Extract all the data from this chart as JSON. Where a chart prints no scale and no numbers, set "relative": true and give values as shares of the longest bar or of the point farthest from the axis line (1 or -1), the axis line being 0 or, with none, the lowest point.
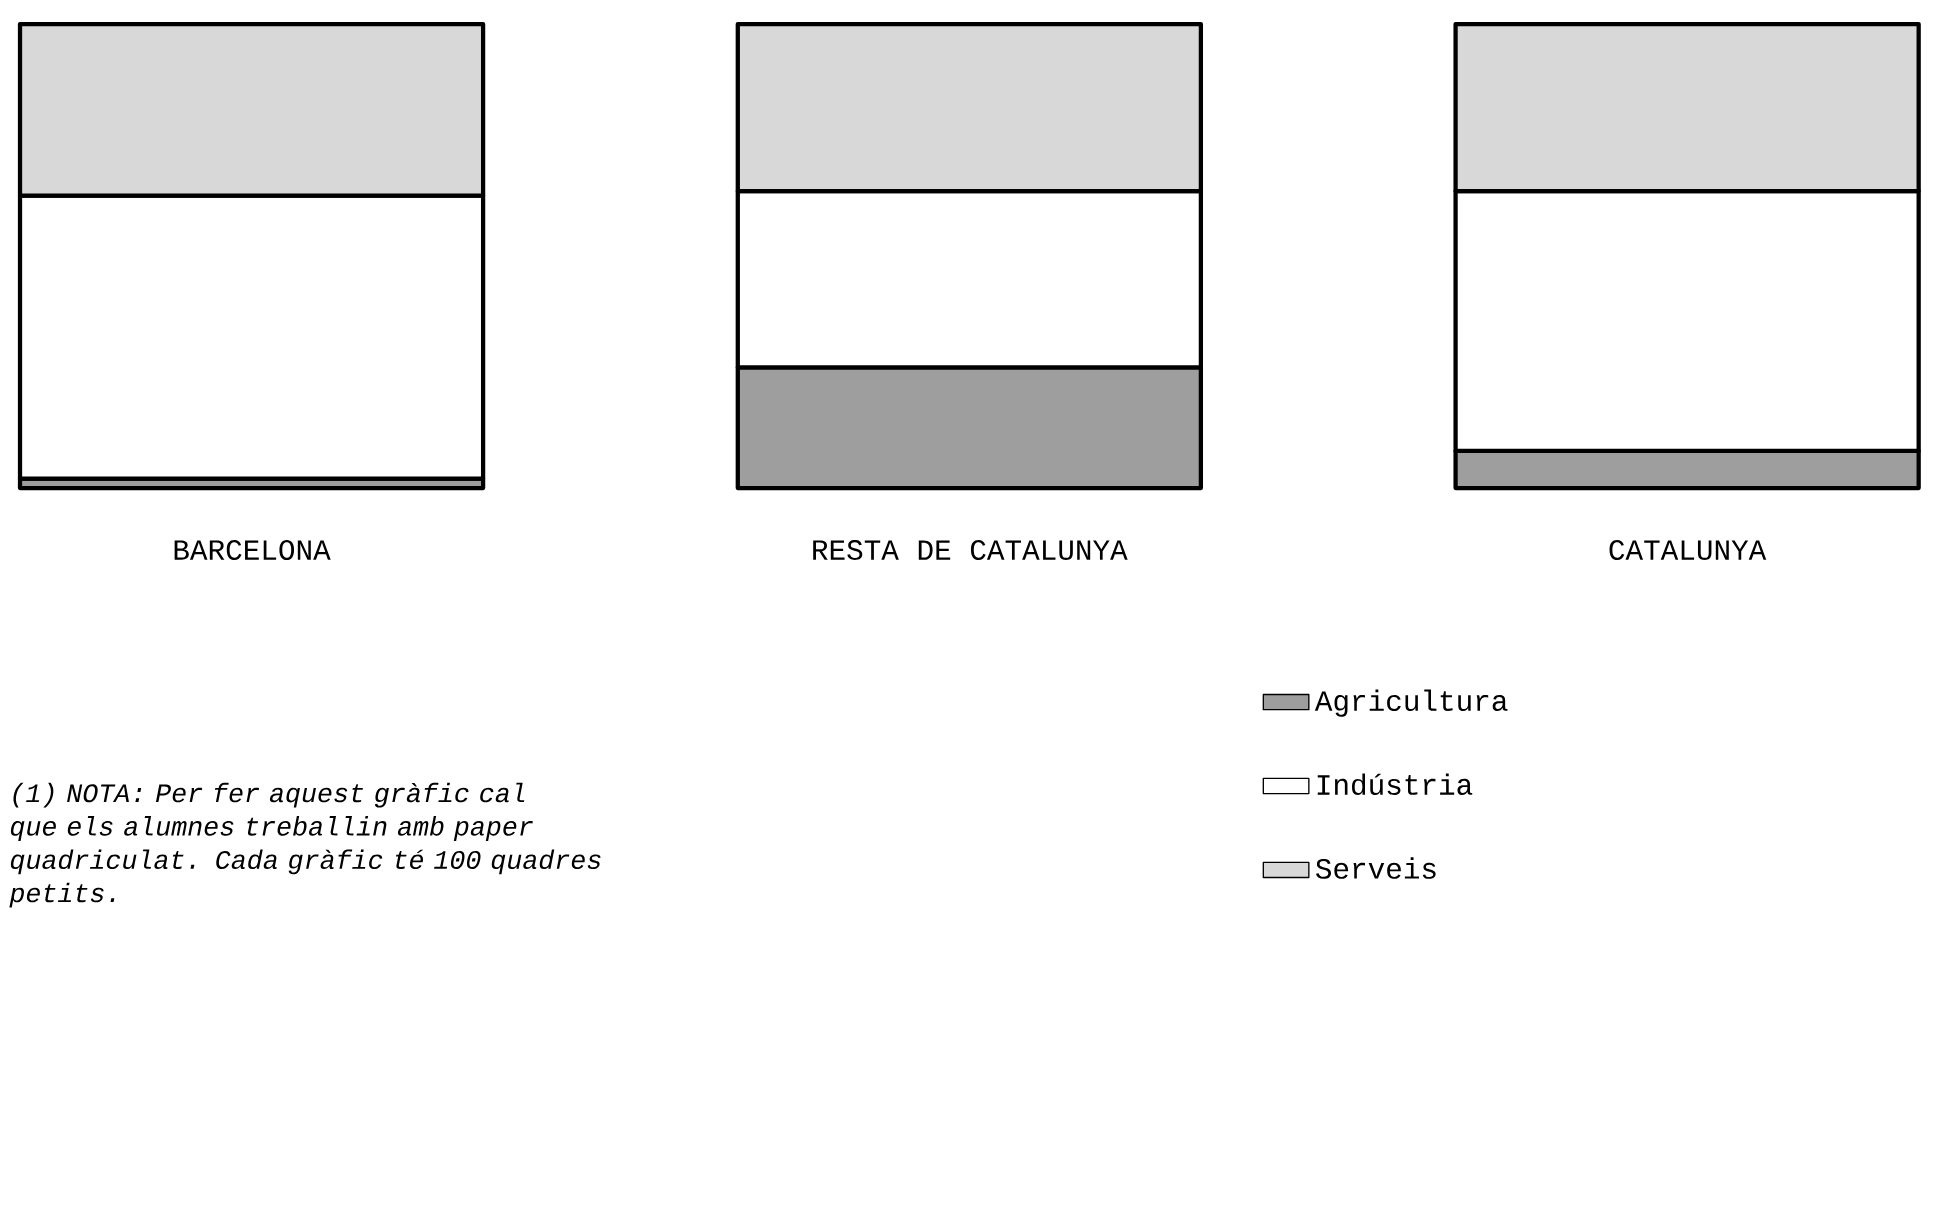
{
  "chart_data": {
    "type": "bar",
    "stacked": true,
    "relative": true,
    "categories": [
      "BARCELONA",
      "RESTA DE CATALUNYA",
      "CATALUNYA"
    ],
    "series": [
      {
        "name": "Agricultura",
        "color": "#9e9e9e",
        "values": [
          0.02,
          0.26,
          0.08
        ]
      },
      {
        "name": "Indústria",
        "color": "#ffffff",
        "values": [
          0.61,
          0.38,
          0.56
        ]
      },
      {
        "name": "Serveis",
        "color": "#d8d8d8",
        "values": [
          0.37,
          0.36,
          0.36
        ]
      }
    ],
    "legend": "bottom right",
    "annotations": [
      "(1) NOTA: Per fer aquest gràfic cal que els alumnes treballin amb paper quadriculat. Cada gràfic té 100 quadres petits."
    ]
  }
}
